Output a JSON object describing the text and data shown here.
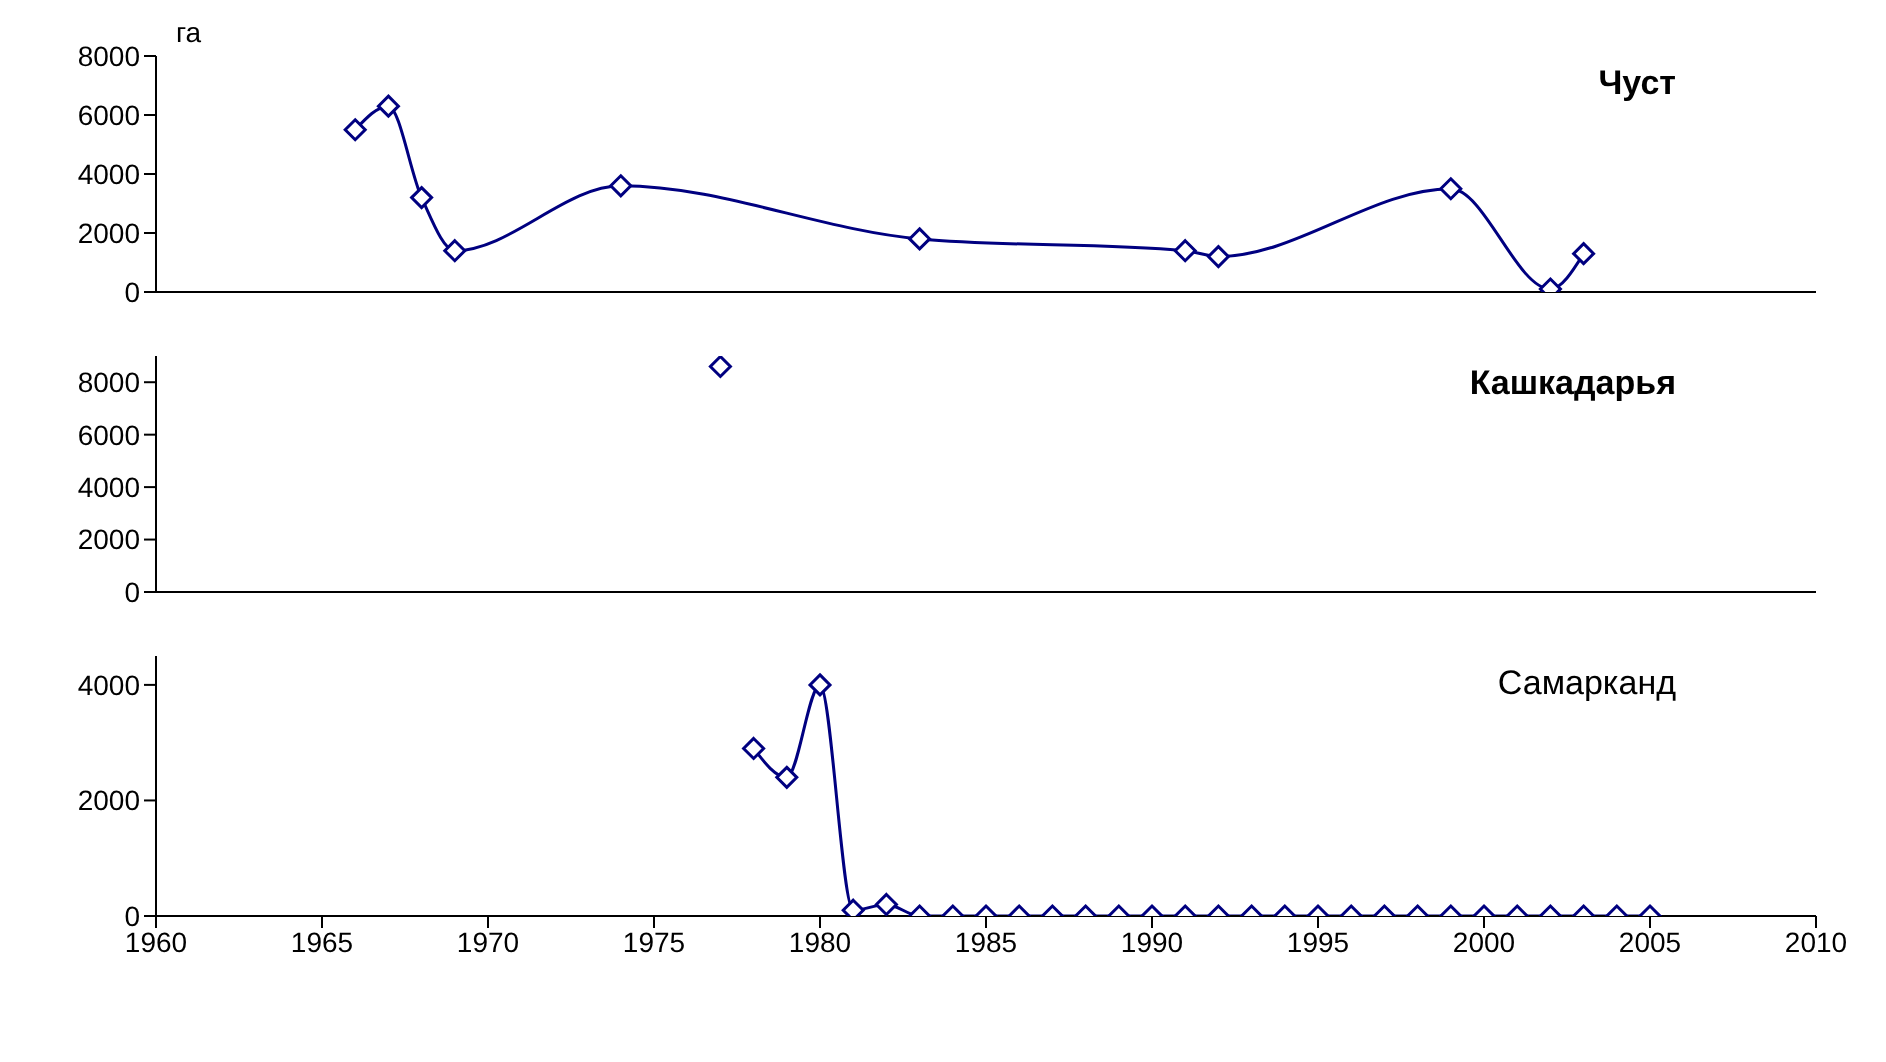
{
  "chart_data": [
    {
      "type": "line",
      "title": "Чуст",
      "ylabel": "га",
      "x": [
        1966,
        1967,
        1968,
        1969,
        1974,
        1983,
        1991,
        1992,
        1999,
        2002,
        2003
      ],
      "series": [
        {
          "color": "#000080",
          "values": [
            5500,
            6300,
            3200,
            1400,
            3600,
            1800,
            1400,
            1200,
            3500,
            100,
            1300
          ]
        }
      ],
      "xlim": [
        1960,
        2010
      ],
      "xticks": [
        1960,
        1965,
        1970,
        1975,
        1980,
        1985,
        1990,
        1995,
        2000,
        2005,
        2010
      ],
      "ylim": [
        0,
        8000
      ],
      "yticks": [
        0,
        2000,
        4000,
        6000,
        8000
      ],
      "tick_labels": "y",
      "marker": "diamond"
    },
    {
      "type": "line",
      "title": "Кашкадарья",
      "x": [
        1977
      ],
      "series": [
        {
          "color": "#000080",
          "values": [
            8600
          ]
        }
      ],
      "xlim": [
        1960,
        2010
      ],
      "xticks": [
        1960,
        1965,
        1970,
        1975,
        1980,
        1985,
        1990,
        1995,
        2000,
        2005,
        2010
      ],
      "ylim": [
        0,
        9000
      ],
      "yticks": [
        0,
        2000,
        4000,
        6000,
        8000
      ],
      "tick_labels": "y",
      "marker": "diamond"
    },
    {
      "type": "line",
      "title": "Самарканд",
      "x": [
        1978,
        1979,
        1980,
        1981,
        1982,
        1983,
        1984,
        1985,
        1986,
        1987,
        1988,
        1989,
        1990,
        1991,
        1992,
        1993,
        1994,
        1995,
        1996,
        1997,
        1998,
        1999,
        2000,
        2001,
        2002,
        2003,
        2004,
        2005
      ],
      "series": [
        {
          "color": "#000080",
          "values": [
            2900,
            2400,
            4000,
            100,
            200,
            0,
            0,
            0,
            0,
            0,
            0,
            0,
            0,
            0,
            0,
            0,
            0,
            0,
            0,
            0,
            0,
            0,
            0,
            0,
            0,
            0,
            0,
            0
          ]
        }
      ],
      "xlim": [
        1960,
        2010
      ],
      "xticks": [
        1960,
        1965,
        1970,
        1975,
        1980,
        1985,
        1990,
        1995,
        2000,
        2005,
        2010
      ],
      "ylim": [
        0,
        4500
      ],
      "yticks": [
        0,
        2000,
        4000
      ],
      "marker": "diamond"
    }
  ]
}
